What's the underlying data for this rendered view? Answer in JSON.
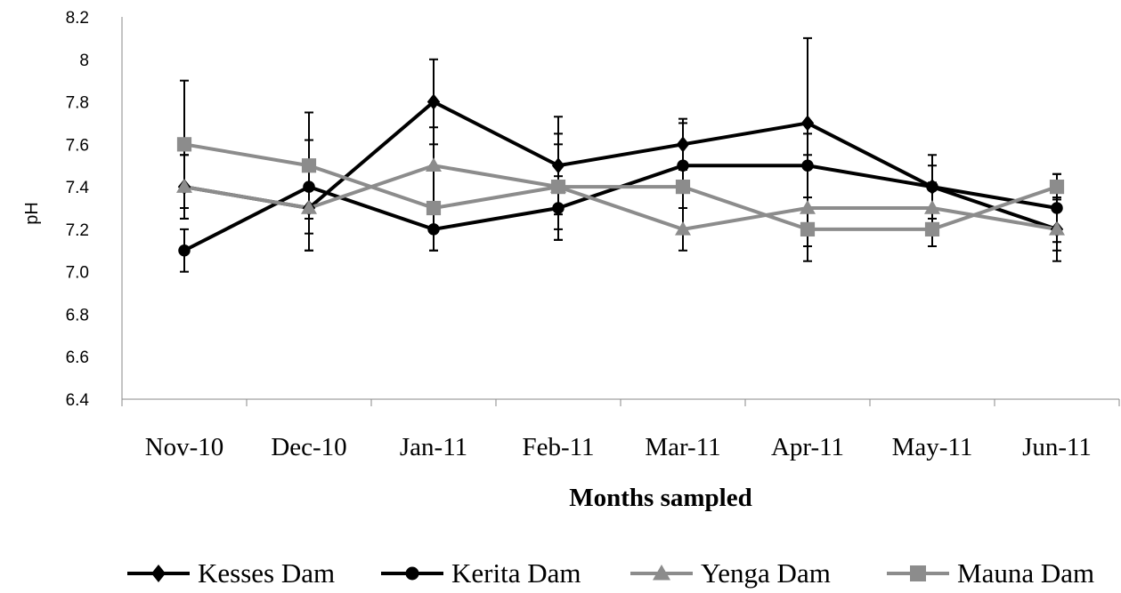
{
  "chart_data": {
    "type": "line",
    "title": "",
    "xlabel": "Months sampled",
    "ylabel": "pH",
    "categories": [
      "Nov-10",
      "Dec-10",
      "Jan-11",
      "Feb-11",
      "Mar-11",
      "Apr-11",
      "May-11",
      "Jun-11"
    ],
    "ylim": [
      6.4,
      8.2
    ],
    "yticks": [
      "6.4",
      "6.6",
      "6.8",
      "7.0",
      "7.2",
      "7.4",
      "7.6",
      "7.8",
      "8",
      "8.2"
    ],
    "grid": false,
    "legend_position": "bottom",
    "series": [
      {
        "name": "Kesses Dam",
        "marker": "diamond",
        "color": "#000000",
        "values": [
          7.4,
          7.3,
          7.8,
          7.5,
          7.6,
          7.7,
          7.4,
          7.2
        ],
        "error": [
          0.15,
          0.2,
          0.2,
          0.23,
          0.12,
          0.4,
          0.15,
          0.1
        ]
      },
      {
        "name": "Kerita Dam",
        "marker": "circle",
        "color": "#000000",
        "values": [
          7.1,
          7.4,
          7.2,
          7.3,
          7.5,
          7.5,
          7.4,
          7.3
        ],
        "error": [
          0.1,
          0.22,
          0.1,
          0.15,
          0.2,
          0.15,
          0.1,
          0.16
        ]
      },
      {
        "name": "Yenga Dam",
        "marker": "triangle",
        "color": "#8c8c8c",
        "values": [
          7.4,
          7.3,
          7.5,
          7.4,
          7.2,
          7.3,
          7.3,
          7.2
        ],
        "error": [
          0.15,
          0.2,
          0.18,
          0.2,
          0.1,
          0.25,
          0.12,
          0.15
        ]
      },
      {
        "name": "Mauna Dam",
        "marker": "square",
        "color": "#8c8c8c",
        "values": [
          7.6,
          7.5,
          7.3,
          7.4,
          7.4,
          7.2,
          7.2,
          7.4
        ],
        "error": [
          0.3,
          0.25,
          0.2,
          0.25,
          0.1,
          0.08,
          0.08,
          0.06
        ]
      }
    ]
  }
}
